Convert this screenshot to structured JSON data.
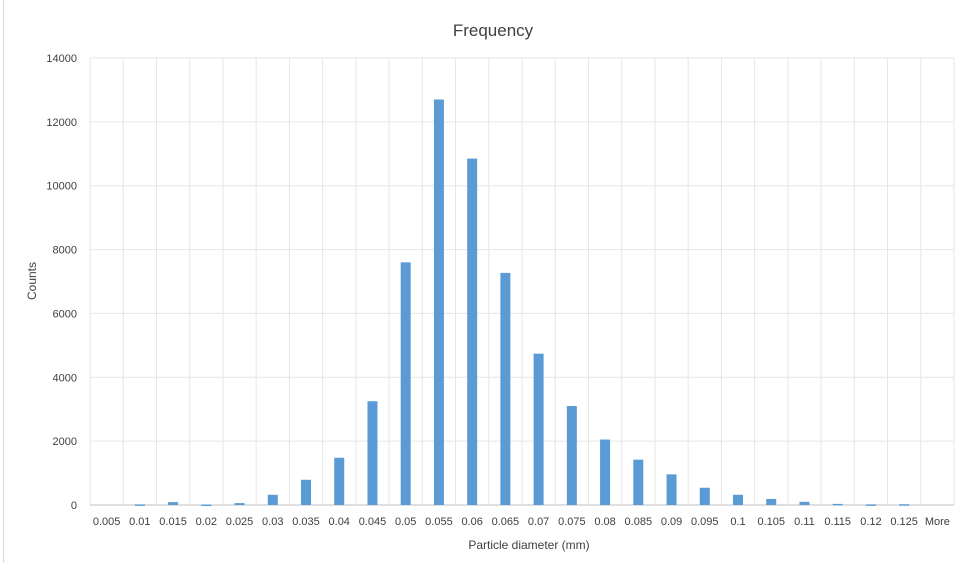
{
  "chart_data": {
    "type": "bar",
    "title": "Frequency",
    "xlabel": "Particle diameter (mm)",
    "ylabel": "Counts",
    "categories": [
      "0.005",
      "0.01",
      "0.015",
      "0.02",
      "0.025",
      "0.03",
      "0.035",
      "0.04",
      "0.045",
      "0.05",
      "0.055",
      "0.06",
      "0.065",
      "0.07",
      "0.075",
      "0.08",
      "0.085",
      "0.09",
      "0.095",
      "0.1",
      "0.105",
      "0.11",
      "0.115",
      "0.12",
      "0.125",
      "More"
    ],
    "values": [
      0,
      20,
      90,
      15,
      60,
      320,
      790,
      1480,
      3250,
      7600,
      12700,
      10850,
      7270,
      4740,
      3100,
      2050,
      1420,
      960,
      540,
      320,
      190,
      100,
      35,
      20,
      25,
      0
    ],
    "ylim": [
      0,
      14000
    ],
    "yticks": [
      0,
      2000,
      4000,
      6000,
      8000,
      10000,
      12000,
      14000
    ],
    "grid": true,
    "bar_color": "#5b9bd5",
    "grid_color": "#e6e6e6",
    "axis_color": "#bfbfbf",
    "text_color": "#404040",
    "title_color": "#404040"
  }
}
